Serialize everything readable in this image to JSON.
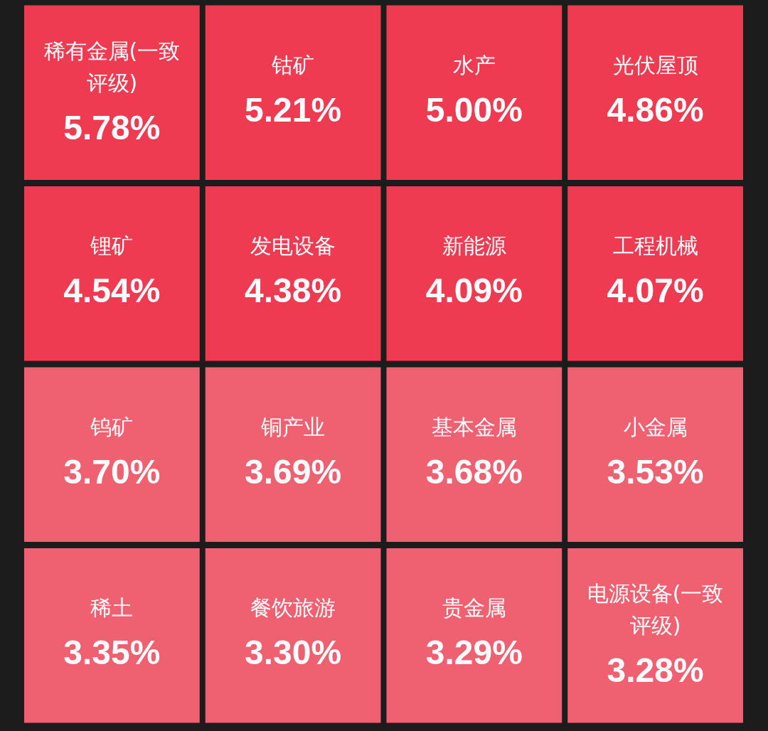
{
  "chart_data": {
    "type": "other",
    "categories": [
      "稀有金属(一致评级)",
      "钴矿",
      "水产",
      "光伏屋顶",
      "锂矿",
      "发电设备",
      "新能源",
      "工程机械",
      "钨矿",
      "铜产业",
      "基本金属",
      "小金属",
      "稀土",
      "餐饮旅游",
      "贵金属",
      "电源设备(一致评级)"
    ],
    "values": [
      5.78,
      5.21,
      5.0,
      4.86,
      4.54,
      4.38,
      4.09,
      4.07,
      3.7,
      3.69,
      3.68,
      3.53,
      3.35,
      3.3,
      3.29,
      3.28
    ],
    "value_labels": [
      "5.78%",
      "5.21%",
      "5.00%",
      "4.86%",
      "4.54%",
      "4.38%",
      "4.09%",
      "4.07%",
      "3.70%",
      "3.69%",
      "3.68%",
      "3.53%",
      "3.35%",
      "3.30%",
      "3.29%",
      "3.28%"
    ],
    "colors": [
      "#ef3b52",
      "#ef3b52",
      "#ef3b52",
      "#ef3b52",
      "#ef3b52",
      "#ef3b52",
      "#ef3b52",
      "#ef3b52",
      "#ef6070",
      "#ef6070",
      "#ef6070",
      "#ef6070",
      "#ef6070",
      "#ef6070",
      "#ef6070",
      "#ef6070"
    ]
  }
}
